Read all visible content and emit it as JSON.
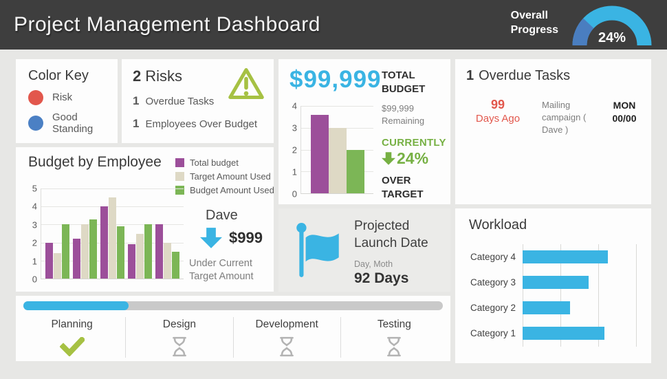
{
  "colors": {
    "header_bg": "#3e3e3e",
    "page_bg": "#e7e7e5",
    "card_bg": "#fdfdfd",
    "launch_card_bg": "#ebebe9",
    "cyan": "#3ab4e3",
    "dark_blue": "#4a7ec0",
    "red": "#e2574c",
    "key_blue": "#4b80c4",
    "lime": "#a6c143",
    "green": "#76b043",
    "purple": "#9c4f9a",
    "tan": "#ded9c5",
    "chart_green": "#7cb656",
    "text_dark": "#3d3d3d",
    "text_gray": "#7d7d7d",
    "num_gray": "#595959",
    "track_gray": "#c9c9c9",
    "grid_gray": "#e5e5e2",
    "divider_gray": "#dcdcdc",
    "hourglass_gray": "#b3b3b3"
  },
  "header": {
    "title": "Project Management Dashboard",
    "progress_label_line1": "Overall",
    "progress_label_line2": "Progress"
  },
  "color_key": {
    "title": "Color Key",
    "items": [
      {
        "label": "Risk"
      },
      {
        "label": "Good Standing"
      }
    ]
  },
  "risks": {
    "count": "2",
    "title": "Risks",
    "items": [
      {
        "count": "1",
        "label": "Overdue Tasks"
      },
      {
        "count": "1",
        "label": "Employees Over Budget"
      }
    ]
  },
  "budget": {
    "amount": "$99,999",
    "label_line1": "TOTAL",
    "label_line2": "BUDGET",
    "remaining": "$99,999 Remaining",
    "currently": "CURRENTLY",
    "delta": "24%",
    "over_line1": "OVER",
    "over_line2": "TARGET"
  },
  "overdue": {
    "count": "1",
    "title": "Overdue Tasks",
    "days": "99",
    "days_label": "Days Ago",
    "task": "Mailing campaign ( Dave )",
    "due_day": "MON",
    "due_date": "00/00"
  },
  "budget_by_employee": {
    "title": "Budget by Employee",
    "callout_name": "Dave",
    "callout_amount": "$999",
    "callout_note": "Under Current Target Amount"
  },
  "launch": {
    "title": "Projected Launch Date",
    "date_label": "Day, Moth",
    "days": "92 Days"
  },
  "workload": {
    "title": "Workload"
  },
  "phases": {
    "items": [
      {
        "label": "Planning",
        "status": "done"
      },
      {
        "label": "Design",
        "status": "pending"
      },
      {
        "label": "Development",
        "status": "pending"
      },
      {
        "label": "Testing",
        "status": "pending"
      }
    ]
  },
  "chart_data": [
    {
      "id": "overall-progress-gauge",
      "type": "gauge",
      "title": "Overall Progress",
      "value_pct": 24,
      "label": "24%",
      "progress_color": "#4a7ec0",
      "remainder_color": "#3ab4e3"
    },
    {
      "id": "budget-mini-bars",
      "type": "bar",
      "title": "Budget vs target (mini)",
      "categories": [
        "Total budget",
        "Target Amount Used",
        "Budget Amount Used"
      ],
      "values": [
        3.6,
        3.0,
        2.0
      ],
      "bar_colors": [
        "#9c4f9a",
        "#ded9c5",
        "#7cb656"
      ],
      "ylim": [
        0,
        4
      ],
      "yticks": [
        0,
        1,
        2,
        3,
        4
      ],
      "grid": true
    },
    {
      "id": "budget-by-employee",
      "type": "bar",
      "title": "Budget by Employee",
      "categories": [
        "",
        "",
        "",
        "",
        ""
      ],
      "series": [
        {
          "name": "Total budget",
          "color": "#9c4f9a",
          "values": [
            2.0,
            2.2,
            4.0,
            1.9,
            3.0
          ]
        },
        {
          "name": "Target Amount Used",
          "color": "#ded9c5",
          "values": [
            1.4,
            3.0,
            4.5,
            2.5,
            2.0
          ]
        },
        {
          "name": "Budget Amount Used",
          "color": "#7cb656",
          "values": [
            3.0,
            3.3,
            2.9,
            3.0,
            1.5
          ]
        }
      ],
      "ylim": [
        0,
        5
      ],
      "yticks": [
        0,
        1,
        2,
        3,
        4,
        5
      ],
      "grid": true,
      "legend_position": "top-right"
    },
    {
      "id": "workload",
      "type": "bar",
      "orientation": "horizontal",
      "title": "Workload",
      "categories": [
        "Category 4",
        "Category 3",
        "Category 2",
        "Category 1"
      ],
      "values_pct_of_axis": [
        75,
        58,
        42,
        72
      ],
      "color": "#3ab4e3",
      "grid": true,
      "xlim_pct": [
        0,
        100
      ],
      "gridline_positions_pct": [
        0,
        33.33,
        66.67,
        100
      ]
    },
    {
      "id": "phase-progress",
      "type": "progress",
      "value_pct": 25,
      "color": "#3ab4e3"
    }
  ]
}
